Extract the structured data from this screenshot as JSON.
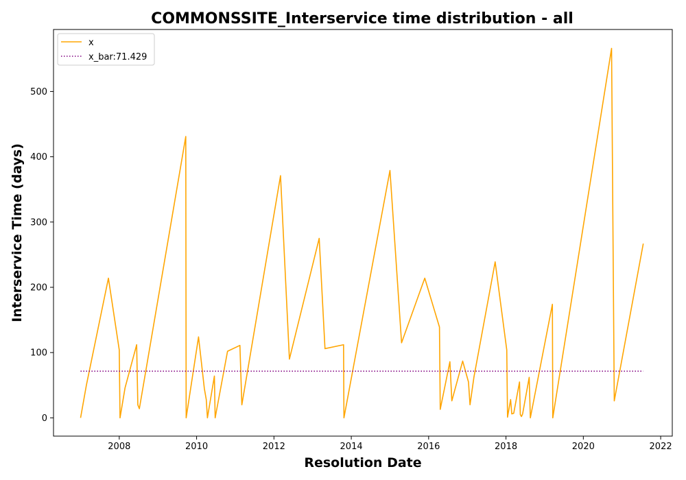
{
  "chart_data": {
    "type": "line",
    "title": "COMMONSSITE_Interservice time distribution - all",
    "xlabel": "Resolution Date",
    "ylabel": "Interservice Time (days)",
    "xlim": [
      2006.3,
      2022.3
    ],
    "ylim": [
      -28,
      595
    ],
    "xticks": [
      2008,
      2010,
      2012,
      2014,
      2016,
      2018,
      2020,
      2022
    ],
    "yticks": [
      0,
      100,
      200,
      300,
      400,
      500
    ],
    "grid": false,
    "legend_position": "top-left",
    "series": [
      {
        "name": "x",
        "color": "#FFA500",
        "style": "solid",
        "x": [
          2007.0,
          2007.15,
          2007.72,
          2008.0,
          2008.02,
          2008.15,
          2008.45,
          2008.48,
          2008.52,
          2009.72,
          2009.73,
          2010.05,
          2010.2,
          2010.25,
          2010.28,
          2010.46,
          2010.48,
          2010.8,
          2011.12,
          2011.17,
          2012.17,
          2012.4,
          2013.17,
          2013.32,
          2013.8,
          2013.81,
          2015.0,
          2015.3,
          2015.9,
          2016.28,
          2016.3,
          2016.55,
          2016.6,
          2016.88,
          2017.03,
          2017.07,
          2017.17,
          2017.72,
          2018.02,
          2018.04,
          2018.12,
          2018.15,
          2018.2,
          2018.35,
          2018.37,
          2018.4,
          2018.43,
          2018.6,
          2018.63,
          2019.2,
          2019.21,
          2020.73,
          2020.8,
          2021.55
        ],
        "y": [
          0,
          50,
          214,
          104,
          0,
          46,
          112,
          20,
          14,
          431,
          0,
          124,
          45,
          28,
          0,
          64,
          0,
          102,
          111,
          20,
          371,
          90,
          275,
          106,
          112,
          0,
          379,
          115,
          214,
          139,
          13,
          86,
          26,
          87,
          55,
          20,
          62,
          239,
          104,
          1,
          28,
          6,
          7,
          55,
          5,
          2,
          6,
          62,
          0,
          174,
          0,
          566,
          26,
          267
        ]
      },
      {
        "name": "x_bar:71.429",
        "color": "#800080",
        "style": "dotted",
        "x": [
          2007.0,
          2021.55
        ],
        "y": [
          71.429,
          71.429
        ]
      }
    ]
  }
}
